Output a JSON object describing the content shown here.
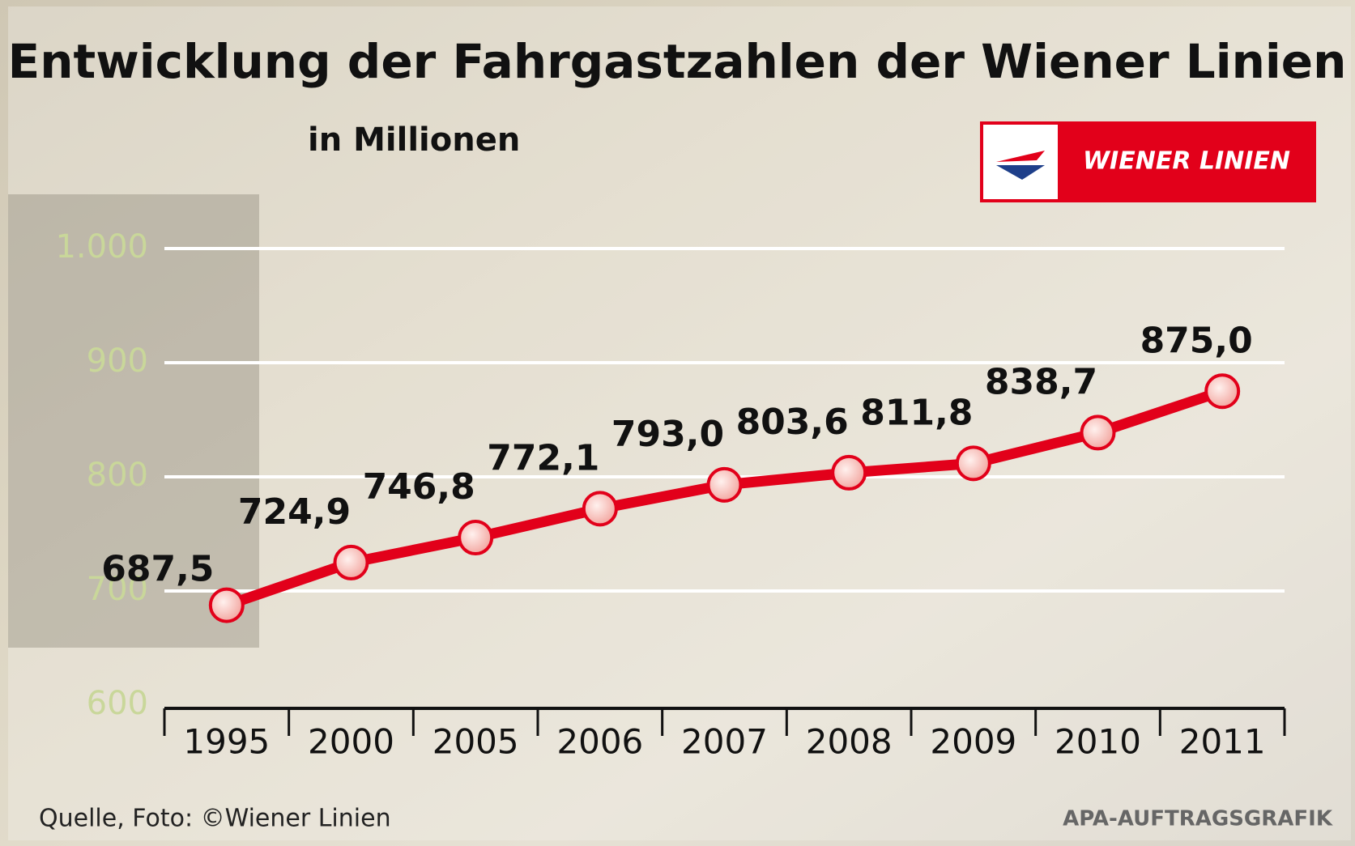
{
  "chart_data": {
    "type": "line",
    "title": "Entwicklung der Fahrgastzahlen der Wiener Linien",
    "subtitle": "in Millionen",
    "logo": "WIENER LINIEN",
    "source": "Quelle, Foto: ©Wiener Linien",
    "credit": "APA-AUFTRAGSGRAFIK",
    "categories": [
      "1995",
      "2000",
      "2005",
      "2006",
      "2007",
      "2008",
      "2009",
      "2010",
      "2011"
    ],
    "values": [
      687.5,
      724.9,
      746.8,
      772.1,
      793.0,
      803.6,
      811.8,
      838.7,
      875.0
    ],
    "value_labels": [
      "687,5",
      "724,9",
      "746,8",
      "772,1",
      "793,0",
      "803,6",
      "811,8",
      "838,7",
      "875,0"
    ],
    "color": "#e2001a",
    "ylim": [
      600,
      1000
    ],
    "yticks": [
      600,
      700,
      800,
      900,
      {
        "value": 1000,
        "label": "1.000"
      }
    ],
    "grid": true
  }
}
